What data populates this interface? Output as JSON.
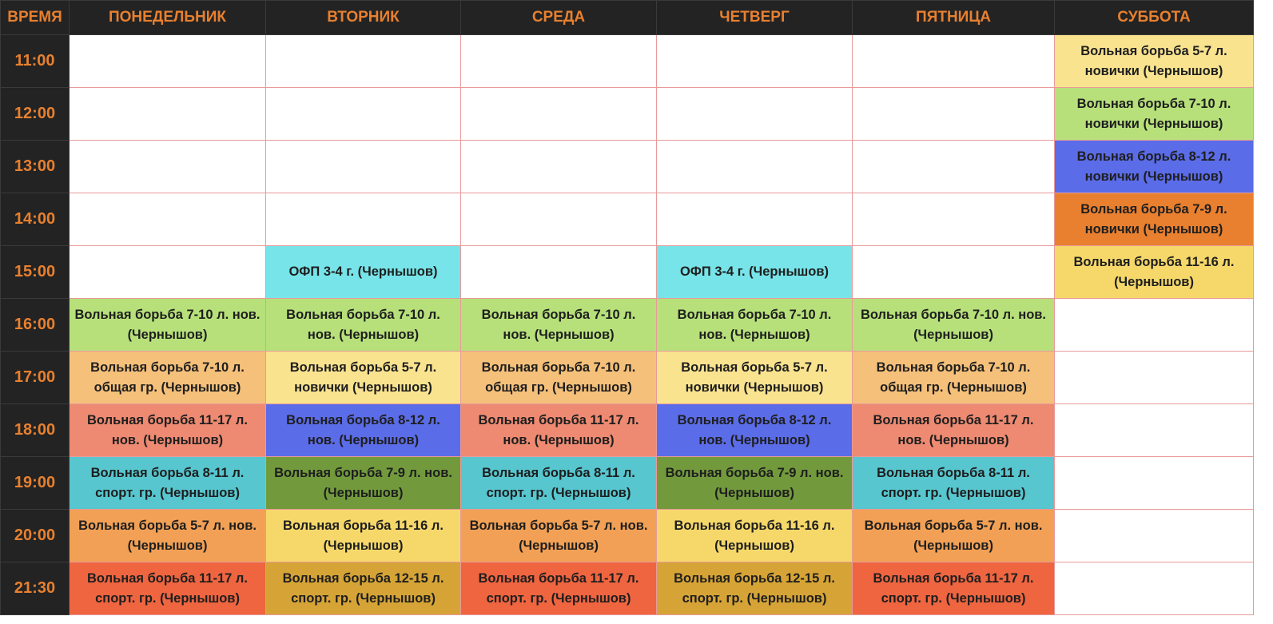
{
  "header": {
    "columns": [
      "ВРЕМЯ",
      "ПОНЕДЕЛЬНИК",
      "ВТОРНИК",
      "СРЕДА",
      "ЧЕТВЕРГ",
      "ПЯТНИЦА",
      "СУББОТА"
    ]
  },
  "rows": [
    {
      "time": "11:00",
      "cells": [
        null,
        null,
        null,
        null,
        null,
        {
          "text": "Вольная борьба 5-7 л. новички (Чернышов)",
          "color": "#f9e38f"
        }
      ]
    },
    {
      "time": "12:00",
      "cells": [
        null,
        null,
        null,
        null,
        null,
        {
          "text": "Вольная борьба 7-10 л. новички (Чернышов)",
          "color": "#b7e07a"
        }
      ]
    },
    {
      "time": "13:00",
      "cells": [
        null,
        null,
        null,
        null,
        null,
        {
          "text": "Вольная борьба 8-12 л. новички (Чернышов)",
          "color": "#5b6ce8"
        }
      ]
    },
    {
      "time": "14:00",
      "cells": [
        null,
        null,
        null,
        null,
        null,
        {
          "text": "Вольная борьба 7-9 л. новички (Чернышов)",
          "color": "#e8802f"
        }
      ]
    },
    {
      "time": "15:00",
      "cells": [
        null,
        {
          "text": "ОФП 3-4 г. (Чернышов)",
          "color": "#76e4e8"
        },
        null,
        {
          "text": "ОФП 3-4 г. (Чернышов)",
          "color": "#76e4e8"
        },
        null,
        {
          "text": "Вольная борьба 11-16 л. (Чернышов)",
          "color": "#f6d86a"
        }
      ]
    },
    {
      "time": "16:00",
      "cells": [
        {
          "text": "Вольная борьба 7-10 л. нов. (Чернышов)",
          "color": "#b7e07a"
        },
        {
          "text": "Вольная борьба 7-10 л. нов. (Чернышов)",
          "color": "#b7e07a"
        },
        {
          "text": "Вольная борьба 7-10 л. нов. (Чернышов)",
          "color": "#b7e07a"
        },
        {
          "text": "Вольная борьба 7-10 л. нов. (Чернышов)",
          "color": "#b7e07a"
        },
        {
          "text": "Вольная борьба 7-10 л. нов. (Чернышов)",
          "color": "#b7e07a"
        },
        null
      ]
    },
    {
      "time": "17:00",
      "cells": [
        {
          "text": "Вольная борьба 7-10 л. общая гр. (Чернышов)",
          "color": "#f5c07a"
        },
        {
          "text": "Вольная борьба 5-7 л. новички (Чернышов)",
          "color": "#f9e38f"
        },
        {
          "text": "Вольная борьба 7-10 л. общая гр. (Чернышов)",
          "color": "#f5c07a"
        },
        {
          "text": "Вольная борьба 5-7 л. новички (Чернышов)",
          "color": "#f9e38f"
        },
        {
          "text": "Вольная борьба 7-10 л. общая гр. (Чернышов)",
          "color": "#f5c07a"
        },
        null
      ]
    },
    {
      "time": "18:00",
      "cells": [
        {
          "text": "Вольная борьба 11-17 л. нов. (Чернышов)",
          "color": "#ee8a72"
        },
        {
          "text": "Вольная борьба 8-12 л. нов. (Чернышов)",
          "color": "#5b6ce8"
        },
        {
          "text": "Вольная борьба 11-17 л. нов. (Чернышов)",
          "color": "#ee8a72"
        },
        {
          "text": "Вольная борьба 8-12 л. нов. (Чернышов)",
          "color": "#5b6ce8"
        },
        {
          "text": "Вольная борьба 11-17 л. нов. (Чернышов)",
          "color": "#ee8a72"
        },
        null
      ]
    },
    {
      "time": "19:00",
      "cells": [
        {
          "text": "Вольная борьба 8-11 л. спорт. гр. (Чернышов)",
          "color": "#57c6cf"
        },
        {
          "text": "Вольная борьба 7-9 л. нов. (Чернышов)",
          "color": "#729a3d"
        },
        {
          "text": "Вольная борьба 8-11 л. спорт. гр. (Чернышов)",
          "color": "#57c6cf"
        },
        {
          "text": "Вольная борьба 7-9 л. нов. (Чернышов)",
          "color": "#729a3d"
        },
        {
          "text": "Вольная борьба 8-11 л. спорт. гр. (Чернышов)",
          "color": "#57c6cf"
        },
        null
      ]
    },
    {
      "time": "20:00",
      "cells": [
        {
          "text": "Вольная борьба 5-7 л. нов. (Чернышов)",
          "color": "#f1a055"
        },
        {
          "text": "Вольная борьба 11-16 л. (Чернышов)",
          "color": "#f6d86a"
        },
        {
          "text": "Вольная борьба 5-7 л. нов. (Чернышов)",
          "color": "#f1a055"
        },
        {
          "text": "Вольная борьба 11-16 л. (Чернышов)",
          "color": "#f6d86a"
        },
        {
          "text": "Вольная борьба 5-7 л. нов. (Чернышов)",
          "color": "#f1a055"
        },
        null
      ]
    },
    {
      "time": "21:30",
      "cells": [
        {
          "text": "Вольная борьба 11-17 л. спорт. гр. (Чернышов)",
          "color": "#ee6540"
        },
        {
          "text": "Вольная борьба 12-15 л. спорт. гр. (Чернышов)",
          "color": "#d6a436"
        },
        {
          "text": "Вольная борьба 11-17 л. спорт. гр. (Чернышов)",
          "color": "#ee6540"
        },
        {
          "text": "Вольная борьба 12-15 л. спорт. гр. (Чернышов)",
          "color": "#d6a436"
        },
        {
          "text": "Вольная борьба 11-17 л. спорт. гр. (Чернышов)",
          "color": "#ee6540"
        },
        null
      ]
    }
  ]
}
